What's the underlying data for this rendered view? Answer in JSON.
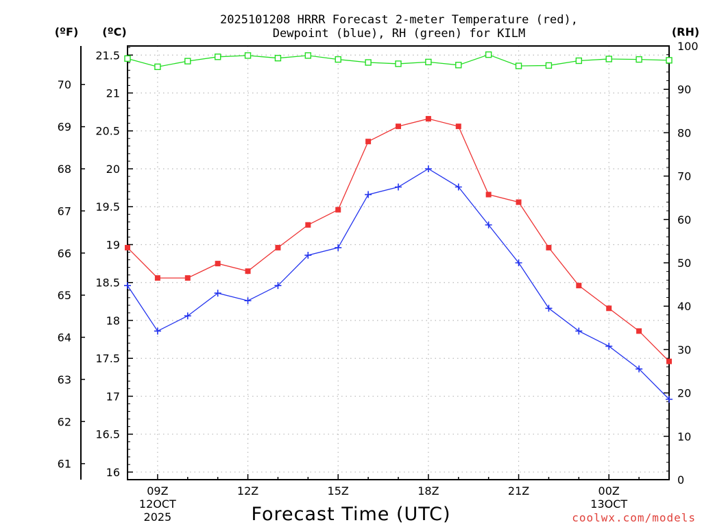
{
  "chart_data": {
    "type": "line",
    "title_line1": "2025101208 HRRR Forecast 2-meter Temperature (red),",
    "title_line2": "Dewpoint (blue), RH (green) for KILM",
    "xlabel": "Forecast Time (UTC)",
    "credit": "coolwx.com/models",
    "units": {
      "fahrenheit": "(ºF)",
      "celsius": "(ºC)",
      "rh": "(RH)"
    },
    "x_range": [
      8,
      26
    ],
    "x_ticks": [
      {
        "x": 9,
        "label": "09Z",
        "sub1": "12OCT",
        "sub2": "2025"
      },
      {
        "x": 12,
        "label": "12Z",
        "sub1": "",
        "sub2": ""
      },
      {
        "x": 15,
        "label": "15Z",
        "sub1": "",
        "sub2": ""
      },
      {
        "x": 18,
        "label": "18Z",
        "sub1": "",
        "sub2": ""
      },
      {
        "x": 21,
        "label": "21Z",
        "sub1": "",
        "sub2": ""
      },
      {
        "x": 24,
        "label": "00Z",
        "sub1": "13OCT",
        "sub2": ""
      }
    ],
    "celsius_axis": {
      "range": [
        15.9,
        21.62
      ],
      "ticks": [
        "16",
        "16.5",
        "17",
        "17.5",
        "18",
        "18.5",
        "19",
        "19.5",
        "20",
        "20.5",
        "21",
        "21.5"
      ]
    },
    "fahrenheit_axis": {
      "ticks": [
        "61",
        "62",
        "63",
        "64",
        "65",
        "66",
        "67",
        "68",
        "69",
        "70"
      ]
    },
    "rh_axis": {
      "range": [
        0,
        100
      ],
      "ticks": [
        "0",
        "10",
        "20",
        "30",
        "40",
        "50",
        "60",
        "70",
        "80",
        "90",
        "100"
      ]
    },
    "x": [
      8,
      9,
      10,
      11,
      12,
      13,
      14,
      15,
      16,
      17,
      18,
      19,
      20,
      21,
      22,
      23,
      24,
      25,
      26
    ],
    "series": [
      {
        "name": "Temperature",
        "axis": "celsius",
        "color": "#ee3333",
        "marker": "filled-square",
        "values": [
          18.96,
          18.56,
          18.56,
          18.75,
          18.65,
          18.96,
          19.26,
          19.46,
          20.36,
          20.56,
          20.66,
          20.56,
          19.66,
          19.56,
          18.96,
          18.46,
          18.16,
          17.86,
          17.46
        ]
      },
      {
        "name": "Dewpoint",
        "axis": "celsius",
        "color": "#2233ee",
        "marker": "plus",
        "values": [
          18.46,
          17.86,
          18.06,
          18.36,
          18.26,
          18.46,
          18.86,
          18.96,
          19.66,
          19.76,
          20.0,
          19.76,
          19.26,
          18.76,
          18.16,
          17.86,
          17.66,
          17.36,
          16.96
        ]
      },
      {
        "name": "RH",
        "axis": "rh",
        "color": "#22dd22",
        "marker": "open-square",
        "values": [
          97.1,
          95.2,
          96.5,
          97.5,
          97.8,
          97.2,
          97.8,
          96.9,
          96.2,
          95.9,
          96.3,
          95.6,
          98.0,
          95.4,
          95.5,
          96.6,
          97.0,
          96.9,
          96.7
        ]
      }
    ]
  }
}
